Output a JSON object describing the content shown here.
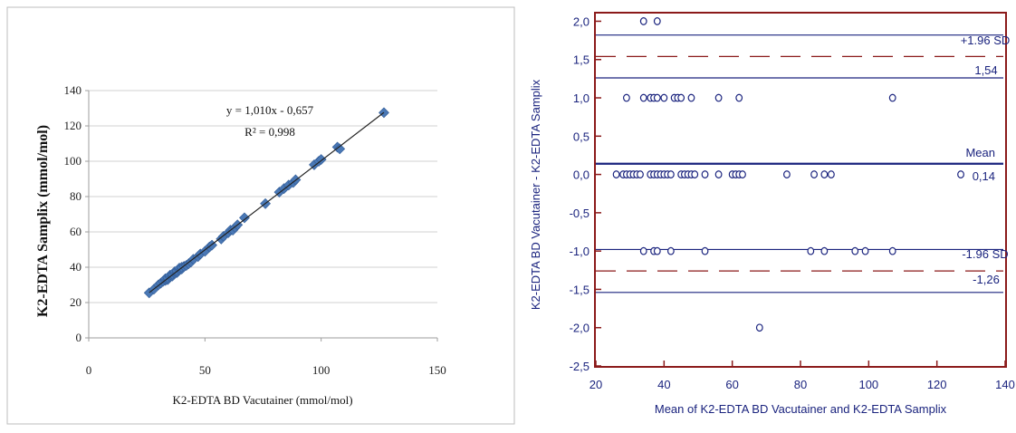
{
  "chart_data": [
    {
      "type": "scatter",
      "xlabel": "K2-EDTA BD Vacutainer (mmol/mol)",
      "ylabel": "K2-EDTA  Samplix (mmol/mol)",
      "xlim": [
        0,
        150
      ],
      "ylim": [
        0,
        140
      ],
      "xticks": [
        "0",
        "50",
        "100",
        "150"
      ],
      "yticks": [
        "0",
        "20",
        "40",
        "60",
        "80",
        "100",
        "120",
        "140"
      ],
      "grid": "horizontal",
      "annotations": [
        "y = 1,010x - 0,657",
        "R² = 0,998"
      ],
      "marker": "diamond",
      "colors": {
        "marker": "#4a78b5",
        "line": "#222222",
        "grid": "#d0d0d0"
      },
      "trendline": {
        "slope": 1.01,
        "intercept": -0.657,
        "x_range": [
          26,
          127
        ]
      },
      "points": [
        [
          26,
          25.5
        ],
        [
          28,
          27.5
        ],
        [
          30,
          30
        ],
        [
          31,
          31
        ],
        [
          32,
          32
        ],
        [
          33,
          32.5
        ],
        [
          33,
          33.5
        ],
        [
          34,
          33
        ],
        [
          34,
          34
        ],
        [
          35,
          34.5
        ],
        [
          35,
          35.5
        ],
        [
          36,
          35
        ],
        [
          36,
          36
        ],
        [
          37,
          36.5
        ],
        [
          37,
          37.5
        ],
        [
          38,
          37
        ],
        [
          38,
          38
        ],
        [
          39,
          38.5
        ],
        [
          39,
          39.5
        ],
        [
          40,
          39
        ],
        [
          40,
          40
        ],
        [
          41,
          40.5
        ],
        [
          42,
          41
        ],
        [
          43,
          42
        ],
        [
          44,
          43
        ],
        [
          45,
          44.5
        ],
        [
          47,
          46
        ],
        [
          48,
          47.5
        ],
        [
          50,
          49
        ],
        [
          52,
          51.5
        ],
        [
          53,
          52.5
        ],
        [
          57,
          56
        ],
        [
          58,
          57.5
        ],
        [
          60,
          59.5
        ],
        [
          61,
          61
        ],
        [
          62,
          61
        ],
        [
          63,
          62.5
        ],
        [
          64,
          64
        ],
        [
          67,
          68
        ],
        [
          76,
          76
        ],
        [
          82,
          82.5
        ],
        [
          84,
          84.5
        ],
        [
          86,
          86.5
        ],
        [
          88,
          88
        ],
        [
          89,
          89.5
        ],
        [
          97,
          98
        ],
        [
          99,
          100
        ],
        [
          100,
          101
        ],
        [
          107,
          108
        ],
        [
          108,
          107
        ],
        [
          127,
          127.5
        ]
      ]
    },
    {
      "type": "scatter",
      "xlabel": "Mean of K2-EDTA BD Vacutainer   and K2-EDTA Samplix",
      "ylabel": "K2-EDTA BD Vacutainer  - K2-EDTA Samplix",
      "xlim": [
        20,
        140
      ],
      "ylim": [
        -2.5,
        2.1
      ],
      "xticks": [
        "20",
        "40",
        "60",
        "80",
        "100",
        "120",
        "140"
      ],
      "yticks": [
        "2,0",
        "1,5",
        "1,0",
        "0,5",
        "0,0",
        "-0,5",
        "-1,0",
        "-1,5",
        "-2,0",
        "-2,5"
      ],
      "marker": "open-circle",
      "colors": {
        "frame": "#8b1a1a",
        "lines": "#1a237e",
        "limits": "#8b1a1a",
        "text": "#1a237e"
      },
      "mean": 0.14,
      "mean_label": "Mean",
      "mean_value_label": "0,14",
      "upper_loa": 1.54,
      "upper_label": "+1.96 SD",
      "upper_value_label": "1,54",
      "upper_loa_ci": [
        1.26,
        1.82
      ],
      "lower_loa": -1.26,
      "lower_label": "-1.96 SD",
      "lower_value_label": "-1,26",
      "lower_loa_ci": [
        -1.54,
        -0.98
      ],
      "points": [
        [
          34,
          2
        ],
        [
          38,
          2
        ],
        [
          29,
          1
        ],
        [
          34,
          1
        ],
        [
          36,
          1
        ],
        [
          37,
          1
        ],
        [
          38,
          1
        ],
        [
          40,
          1
        ],
        [
          43,
          1
        ],
        [
          44,
          1
        ],
        [
          45,
          1
        ],
        [
          48,
          1
        ],
        [
          56,
          1
        ],
        [
          62,
          1
        ],
        [
          107,
          1
        ],
        [
          26,
          0
        ],
        [
          28,
          0
        ],
        [
          29,
          0
        ],
        [
          30,
          0
        ],
        [
          31,
          0
        ],
        [
          32,
          0
        ],
        [
          33,
          0
        ],
        [
          36,
          0
        ],
        [
          37,
          0
        ],
        [
          38,
          0
        ],
        [
          39,
          0
        ],
        [
          40,
          0
        ],
        [
          41,
          0
        ],
        [
          42,
          0
        ],
        [
          45,
          0
        ],
        [
          46,
          0
        ],
        [
          47,
          0
        ],
        [
          48,
          0
        ],
        [
          49,
          0
        ],
        [
          52,
          0
        ],
        [
          56,
          0
        ],
        [
          60,
          0
        ],
        [
          61,
          0
        ],
        [
          62,
          0
        ],
        [
          63,
          0
        ],
        [
          76,
          0
        ],
        [
          84,
          0
        ],
        [
          87,
          0
        ],
        [
          89,
          0
        ],
        [
          127,
          0
        ],
        [
          34,
          -1
        ],
        [
          37,
          -1
        ],
        [
          38,
          -1
        ],
        [
          42,
          -1
        ],
        [
          52,
          -1
        ],
        [
          83,
          -1
        ],
        [
          87,
          -1
        ],
        [
          96,
          -1
        ],
        [
          99,
          -1
        ],
        [
          107,
          -1
        ],
        [
          68,
          -2
        ]
      ]
    }
  ]
}
